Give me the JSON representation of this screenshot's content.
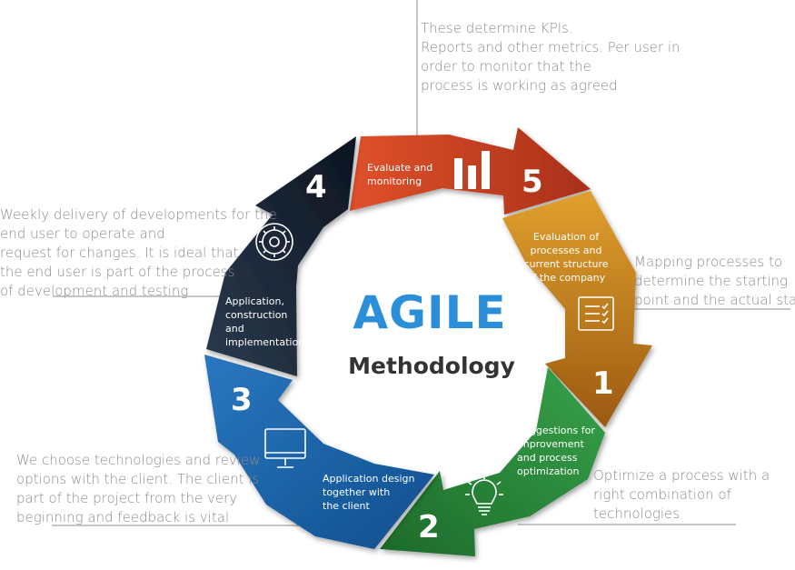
{
  "center": {
    "title": "AGILE",
    "subtitle": "Methodology"
  },
  "colors": {
    "step1": "#c9821c",
    "step2": "#2e8b3e",
    "step3": "#2f7fc1",
    "step4": "#1f2d3d",
    "step5": "#d0461f",
    "agile": "#2a8fd8",
    "note": "#8c8c8c"
  },
  "steps": [
    {
      "number": "1",
      "label": [
        "Evaluation of",
        "processes and",
        "current structure",
        "of the company"
      ],
      "icon": "checklist-icon",
      "note": [
        "Mapping processes to",
        "determine the starting",
        "point and the actual state"
      ]
    },
    {
      "number": "2",
      "label": [
        "Suggestions for",
        "improvement",
        "and process",
        "optimization"
      ],
      "icon": "lightbulb-icon",
      "note": [
        "Optimize a process with a",
        "right combination of",
        "technologies"
      ]
    },
    {
      "number": "3",
      "label": [
        "Application design",
        "together with",
        "the client"
      ],
      "icon": "monitor-icon",
      "note": [
        "We choose technologies and review",
        "options with the client. The client is",
        "part of the project from the very",
        "beginning and feedback is vital"
      ]
    },
    {
      "number": "4",
      "label": [
        "Application,",
        "construction",
        "and",
        "implementation"
      ],
      "icon": "gear-icon",
      "note": [
        "Weekly delivery of developments for the",
        "end user to operate and",
        "request for changes. It is ideal that",
        "the end user is part of the process",
        "of development and testing"
      ]
    },
    {
      "number": "5",
      "label": [
        "Evaluate and",
        "monitoring"
      ],
      "icon": "bar-chart-icon",
      "note": [
        "These determine KPIs.",
        "Reports and other metrics. Per user in",
        "order to monitor that the",
        "process is working as agreed"
      ]
    }
  ]
}
